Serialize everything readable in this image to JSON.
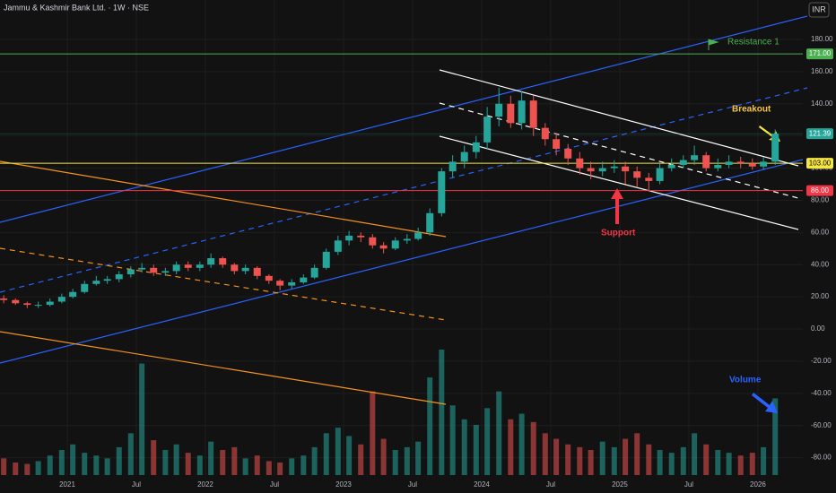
{
  "chart_data": {
    "type": "candlestick",
    "title": "Jammu & Kashmir Bank Ltd. · 1W · NSE",
    "currency": "INR",
    "up_color": "#26a69a",
    "down_color": "#ef5350",
    "x": [
      2020.54,
      2020.625,
      2020.71,
      2020.79,
      2020.875,
      2020.96,
      2021.04,
      2021.125,
      2021.21,
      2021.29,
      2021.375,
      2021.46,
      2021.54,
      2021.625,
      2021.71,
      2021.79,
      2021.875,
      2021.96,
      2022.04,
      2022.125,
      2022.21,
      2022.29,
      2022.375,
      2022.46,
      2022.54,
      2022.625,
      2022.71,
      2022.79,
      2022.875,
      2022.96,
      2023.04,
      2023.125,
      2023.21,
      2023.29,
      2023.375,
      2023.46,
      2023.54,
      2023.625,
      2023.71,
      2023.79,
      2023.875,
      2023.96,
      2024.04,
      2024.125,
      2024.21,
      2024.29,
      2024.375,
      2024.46,
      2024.54,
      2024.625,
      2024.71,
      2024.79,
      2024.875,
      2024.96,
      2025.04,
      2025.125,
      2025.21,
      2025.29,
      2025.375,
      2025.46,
      2025.54,
      2025.625,
      2025.71,
      2025.79,
      2025.875,
      2025.96,
      2026.04,
      2026.125
    ],
    "open": [
      19,
      18,
      16,
      15,
      15,
      17,
      20,
      23,
      28,
      30,
      31,
      34,
      37,
      38,
      35,
      36,
      40,
      38,
      40,
      44,
      40,
      36,
      38,
      33,
      30,
      27,
      29,
      32,
      38,
      48,
      55,
      58,
      57,
      52,
      50,
      55,
      56,
      60,
      72,
      98,
      104,
      110,
      116,
      132,
      140,
      128,
      142,
      125,
      118,
      112,
      106,
      100,
      98,
      100,
      101,
      98,
      94,
      92,
      100,
      102,
      105,
      108,
      100,
      102,
      104,
      103,
      101,
      104
    ],
    "high": [
      21,
      19,
      17,
      17,
      19,
      22,
      25,
      30,
      33,
      33,
      36,
      39,
      41,
      40,
      38,
      42,
      42,
      42,
      47,
      45,
      41,
      40,
      39,
      34,
      31,
      31,
      34,
      40,
      50,
      58,
      61,
      60,
      59,
      54,
      57,
      59,
      63,
      75,
      100,
      108,
      114,
      120,
      138,
      150,
      145,
      148,
      145,
      128,
      122,
      115,
      110,
      104,
      104,
      105,
      104,
      101,
      97,
      103,
      106,
      108,
      114,
      110,
      106,
      108,
      107,
      106,
      107,
      124
    ],
    "low": [
      16,
      15,
      13,
      13,
      14,
      16,
      19,
      22,
      27,
      28,
      29,
      32,
      35,
      33,
      33,
      34,
      36,
      36,
      38,
      38,
      34,
      34,
      31,
      28,
      24,
      25,
      28,
      31,
      37,
      46,
      52,
      54,
      50,
      47,
      49,
      53,
      55,
      58,
      70,
      94,
      100,
      106,
      112,
      126,
      125,
      124,
      120,
      114,
      108,
      102,
      96,
      93,
      95,
      97,
      90,
      88,
      86,
      90,
      98,
      100,
      102,
      98,
      98,
      100,
      100,
      99,
      99,
      102
    ],
    "close": [
      18,
      16,
      15,
      15,
      17,
      20,
      23,
      28,
      30,
      31,
      34,
      37,
      38,
      35,
      36,
      40,
      38,
      40,
      44,
      40,
      36,
      38,
      33,
      30,
      27,
      29,
      32,
      38,
      48,
      55,
      58,
      57,
      52,
      50,
      55,
      56,
      60,
      72,
      98,
      104,
      110,
      116,
      132,
      140,
      128,
      142,
      125,
      118,
      112,
      106,
      100,
      98,
      100,
      101,
      98,
      94,
      92,
      100,
      102,
      105,
      108,
      100,
      102,
      104,
      103,
      101,
      104,
      121.39
    ],
    "volume": [
      12,
      9,
      8,
      10,
      14,
      18,
      22,
      16,
      14,
      12,
      20,
      30,
      80,
      25,
      18,
      22,
      16,
      14,
      24,
      18,
      20,
      12,
      14,
      10,
      9,
      12,
      14,
      20,
      30,
      34,
      28,
      22,
      60,
      26,
      18,
      20,
      24,
      70,
      90,
      50,
      40,
      36,
      48,
      60,
      40,
      44,
      38,
      30,
      26,
      22,
      20,
      18,
      24,
      20,
      26,
      30,
      22,
      18,
      16,
      20,
      30,
      22,
      18,
      16,
      14,
      16,
      20,
      55
    ],
    "xlim": [
      2020.513,
      2026.325
    ],
    "xticks": [
      {
        "value": 2021,
        "label": "2021"
      },
      {
        "value": 2021.5,
        "label": "Jul"
      },
      {
        "value": 2022,
        "label": "2022"
      },
      {
        "value": 2022.5,
        "label": "Jul"
      },
      {
        "value": 2023,
        "label": "2023"
      },
      {
        "value": 2023.5,
        "label": "Jul"
      },
      {
        "value": 2024,
        "label": "2024"
      },
      {
        "value": 2024.5,
        "label": "Jul"
      },
      {
        "value": 2025,
        "label": "2025"
      },
      {
        "value": 2025.5,
        "label": "Jul"
      },
      {
        "value": 2026,
        "label": "2026"
      }
    ],
    "ylim": [
      -90.8,
      204.5
    ],
    "yticks": [
      {
        "value": 180,
        "label": "180.00"
      },
      {
        "value": 160,
        "label": "160.00"
      },
      {
        "value": 140,
        "label": "140.00"
      },
      {
        "value": 120,
        "label": "120.00"
      },
      {
        "value": 100,
        "label": "100.00"
      },
      {
        "value": 80,
        "label": "80.00"
      },
      {
        "value": 60,
        "label": "60.00"
      },
      {
        "value": 40,
        "label": "40.00"
      },
      {
        "value": 20,
        "label": "20.00"
      },
      {
        "value": 0,
        "label": "0.00"
      },
      {
        "value": -20,
        "label": "-20.00"
      },
      {
        "value": -40,
        "label": "-40.00"
      },
      {
        "value": -60,
        "label": "-60.00"
      },
      {
        "value": -80,
        "label": "-80.00"
      }
    ],
    "levels": [
      {
        "value": 171,
        "label": "171.00",
        "color": "#4caf50"
      },
      {
        "value": 121.39,
        "label": "121.39",
        "color": "#26a69a"
      },
      {
        "value": 103,
        "label": "103.00",
        "color": "#f5e642"
      },
      {
        "value": 86,
        "label": "86.00",
        "color": "#f23645"
      }
    ],
    "annotations": [
      "Resistance 1",
      "Breakout",
      "Support",
      "Volume"
    ]
  }
}
